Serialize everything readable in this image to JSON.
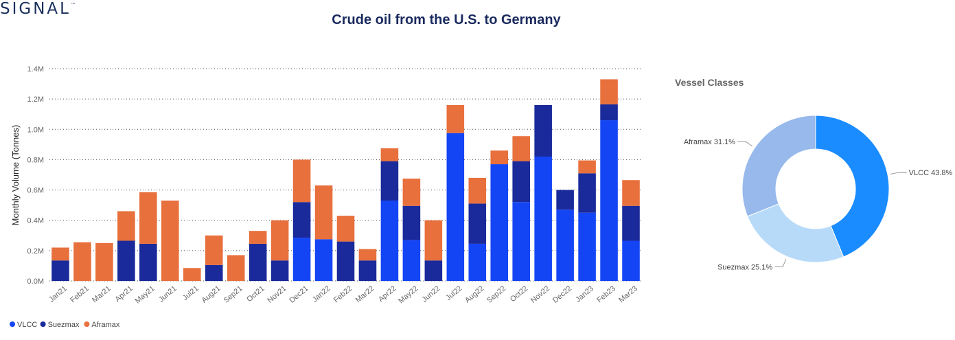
{
  "header": {
    "logo_text": "SIGNAL",
    "logo_mark": "™",
    "title": "Crude oil from the U.S. to Germany"
  },
  "chart_data": [
    {
      "type": "bar",
      "stacked": true,
      "title": "",
      "xlabel": "",
      "ylabel": "Monthly Volume (Tonnes)",
      "ylim": [
        0,
        1400000
      ],
      "y_ticks": [
        {
          "value": 0,
          "label": "0.0M"
        },
        {
          "value": 200000,
          "label": "0.2M"
        },
        {
          "value": 400000,
          "label": "0.4M"
        },
        {
          "value": 600000,
          "label": "0.6M"
        },
        {
          "value": 800000,
          "label": "0.8M"
        },
        {
          "value": 1000000,
          "label": "1.0M"
        },
        {
          "value": 1200000,
          "label": "1.2M"
        },
        {
          "value": 1400000,
          "label": "1.4M"
        }
      ],
      "grid": true,
      "legend_position": "bottom-left",
      "categories": [
        "Jan21",
        "Feb21",
        "Mar21",
        "Apr21",
        "May21",
        "Jun21",
        "Jul21",
        "Aug21",
        "Sep21",
        "Oct21",
        "Nov21",
        "Dec21",
        "Jan22",
        "Feb22",
        "Mar22",
        "Apr22",
        "May22",
        "Jun22",
        "Jul22",
        "Aug22",
        "Sep22",
        "Oct22",
        "Nov22",
        "Dec22",
        "Jan23",
        "Feb23",
        "Mar23"
      ],
      "series": [
        {
          "name": "VLCC",
          "color": "#1445f5",
          "values": [
            0,
            0,
            0,
            0,
            0,
            0,
            0,
            0,
            0,
            0,
            0,
            285000,
            275000,
            0,
            0,
            530000,
            270000,
            0,
            975000,
            245000,
            770000,
            520000,
            820000,
            470000,
            450000,
            1060000,
            265000
          ]
        },
        {
          "name": "Suezmax",
          "color": "#1a2a9a",
          "values": [
            135000,
            0,
            0,
            265000,
            245000,
            0,
            0,
            105000,
            0,
            245000,
            135000,
            235000,
            0,
            260000,
            135000,
            260000,
            225000,
            135000,
            0,
            265000,
            0,
            270000,
            340000,
            130000,
            260000,
            105000,
            230000
          ]
        },
        {
          "name": "Aframax",
          "color": "#e8703c",
          "values": [
            85000,
            255000,
            250000,
            195000,
            340000,
            530000,
            85000,
            195000,
            170000,
            85000,
            265000,
            280000,
            355000,
            170000,
            75000,
            85000,
            180000,
            265000,
            185000,
            170000,
            90000,
            165000,
            0,
            0,
            85000,
            165000,
            170000
          ]
        }
      ]
    },
    {
      "type": "pie",
      "donut": true,
      "title": "Vessel Classes",
      "slices": [
        {
          "name": "VLCC",
          "value": 43.8,
          "label": "VLCC 43.8%",
          "color": "#1a8cff"
        },
        {
          "name": "Suezmax",
          "value": 25.1,
          "label": "Suezmax 25.1%",
          "color": "#b8daf9"
        },
        {
          "name": "Aframax",
          "value": 31.1,
          "label": "Aframax 31.1%",
          "color": "#97b9eb"
        }
      ]
    }
  ]
}
